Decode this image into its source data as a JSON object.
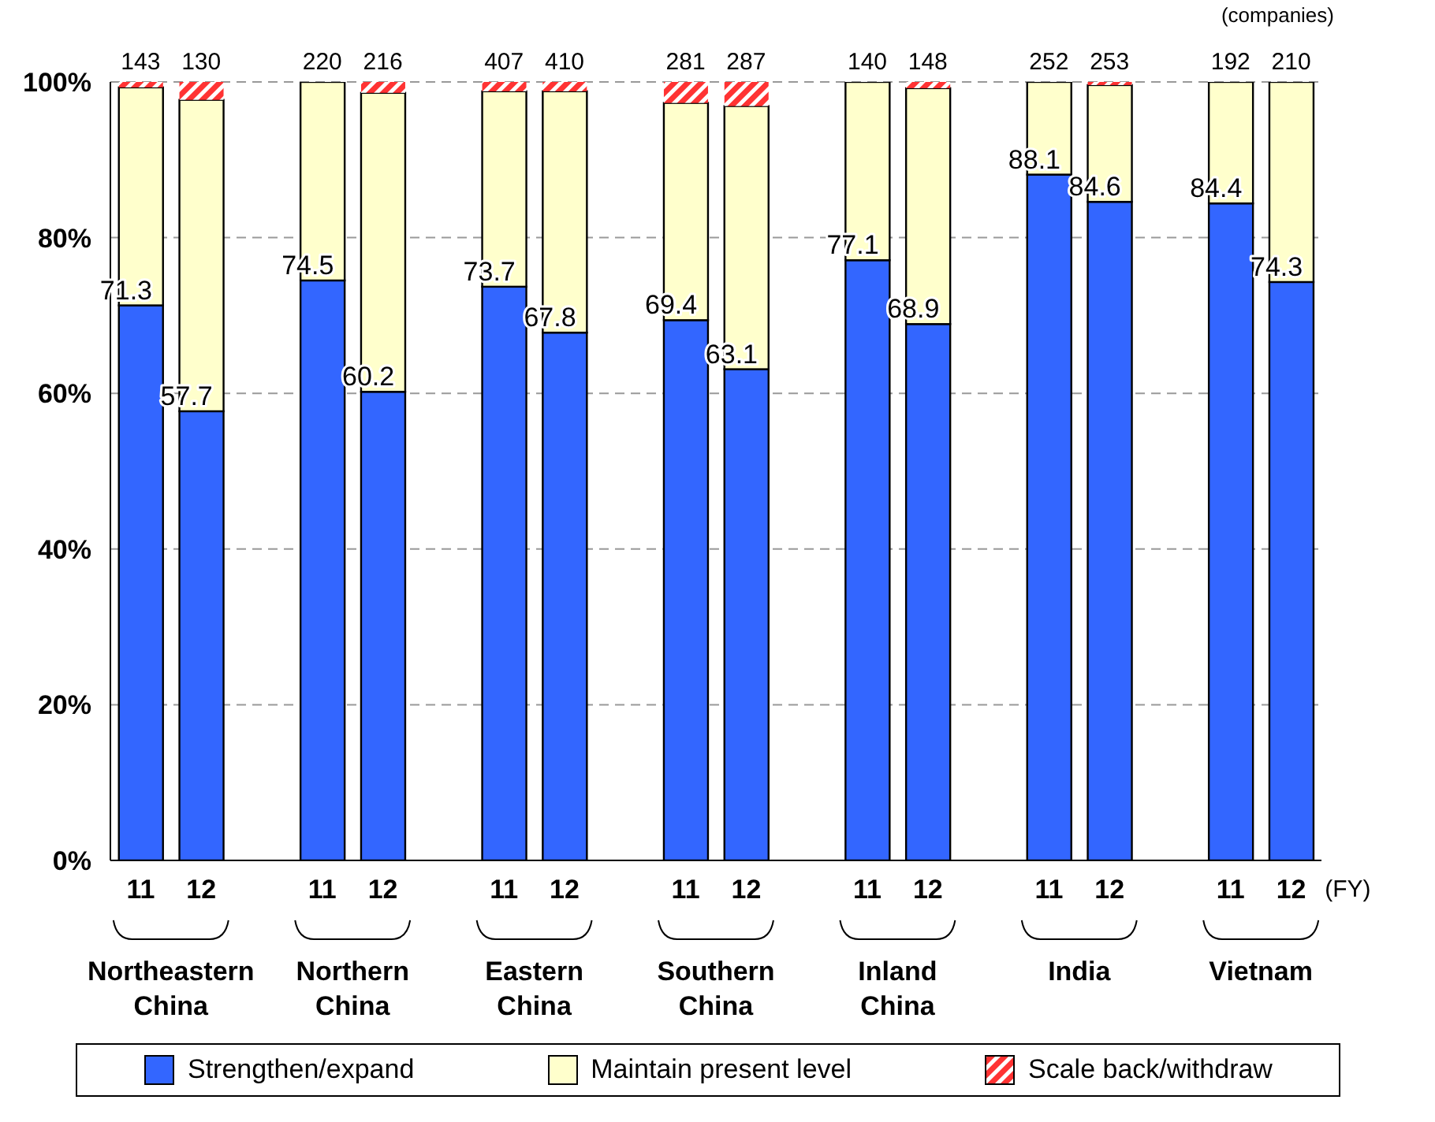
{
  "chart_data": {
    "type": "bar",
    "stacked": true,
    "categories": [
      "11",
      "12",
      null,
      "11",
      "12",
      null,
      "11",
      "12",
      null,
      "11",
      "12",
      null,
      "11",
      "12",
      null,
      "11",
      "12",
      null,
      "11",
      "12"
    ],
    "series": [
      {
        "name": "Strengthen/expand",
        "color": "#3366ff",
        "values": [
          71.3,
          57.7,
          null,
          74.5,
          60.2,
          null,
          73.7,
          67.8,
          null,
          69.4,
          63.1,
          null,
          77.1,
          68.9,
          null,
          88.1,
          84.6,
          null,
          84.4,
          74.3
        ],
        "value_labels": [
          "71.3",
          "57.7",
          null,
          "74.5",
          "60.2",
          null,
          "73.7",
          "67.8",
          null,
          "69.4",
          "63.1",
          null,
          "77.1",
          "68.9",
          null,
          "88.1",
          "84.6",
          null,
          "84.4",
          "74.3"
        ]
      },
      {
        "name": "Maintain present level",
        "color": "#ffffcc",
        "values": [
          28.0,
          40.0,
          null,
          25.5,
          38.4,
          null,
          25.1,
          31.0,
          null,
          27.9,
          33.8,
          null,
          22.9,
          30.3,
          null,
          11.9,
          15.0,
          null,
          15.6,
          25.7
        ]
      },
      {
        "name": "Scale back/withdraw",
        "color": "#ff3333",
        "values": [
          0.7,
          2.3,
          null,
          0,
          1.4,
          null,
          1.2,
          1.2,
          null,
          2.7,
          3.1,
          null,
          0,
          0.8,
          null,
          0,
          0.4,
          null,
          0,
          0
        ]
      }
    ],
    "ylim": [
      0,
      100
    ],
    "yticks": [
      {
        "value": 0,
        "label": "0%"
      },
      {
        "value": 20,
        "label": "20%"
      },
      {
        "value": 40,
        "label": "40%"
      },
      {
        "value": 60,
        "label": "60%"
      },
      {
        "value": 80,
        "label": "80%"
      },
      {
        "value": 100,
        "label": "100%"
      }
    ],
    "grid": "y",
    "legend": "bottom",
    "annotations": [
      "(companies)",
      "(FY)",
      "Northeastern China",
      "Northern China",
      "Eastern China",
      "Southern China",
      "Inland China",
      "India",
      "Vietnam",
      "143",
      "130",
      "220",
      "216",
      "407",
      "410",
      "281",
      "287",
      "140",
      "148",
      "252",
      "253",
      "192",
      "210"
    ]
  }
}
